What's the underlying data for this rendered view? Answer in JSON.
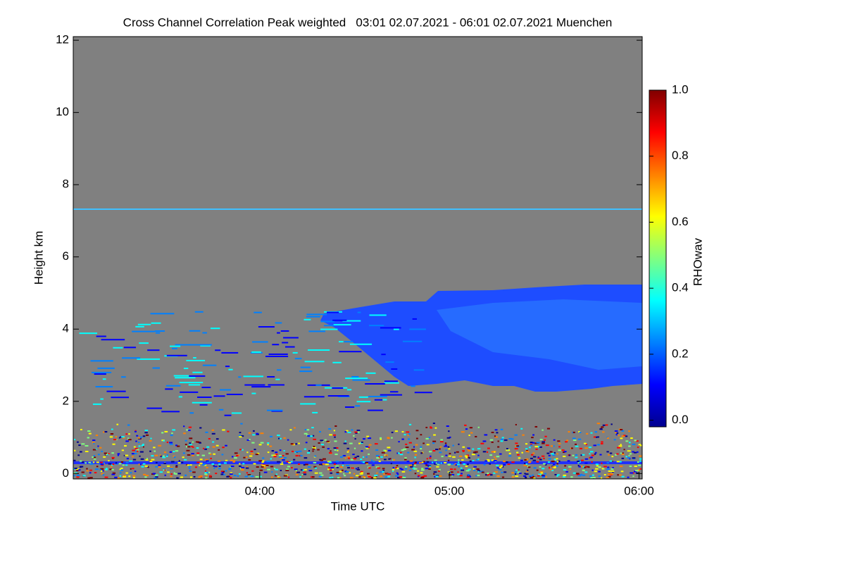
{
  "chart_data": {
    "type": "heatmap",
    "title": "Cross Channel Correlation Peak weighted   03:01 02.07.2021 - 06:01 02.07.2021 Muenchen",
    "x_label": "Time UTC",
    "y_label": "Height km",
    "colorbar_label": "RHOwav",
    "xlim": [
      181,
      361
    ],
    "xticks": [
      {
        "value": 240,
        "label": "04:00"
      },
      {
        "value": 300,
        "label": "05:00"
      },
      {
        "value": 360,
        "label": "06:00"
      }
    ],
    "ylim": [
      -0.15,
      12.1
    ],
    "yticks": [
      0,
      2,
      4,
      6,
      8,
      10,
      12
    ],
    "clim": [
      -0.02,
      1.0
    ],
    "cticks": [
      {
        "value": 0,
        "label": "0.0"
      },
      {
        "value": 0.2,
        "label": "0.2"
      },
      {
        "value": 0.4,
        "label": "0.4"
      },
      {
        "value": 0.6,
        "label": "0.6"
      },
      {
        "value": 0.8,
        "label": "0.8"
      },
      {
        "value": 1.0,
        "label": "1.0"
      }
    ],
    "colormap": [
      "#00008f",
      "#0000ff",
      "#0080ff",
      "#00ffff",
      "#80ff80",
      "#ffff00",
      "#ff8000",
      "#ff0000",
      "#800000"
    ],
    "background_color": "#808080"
  }
}
